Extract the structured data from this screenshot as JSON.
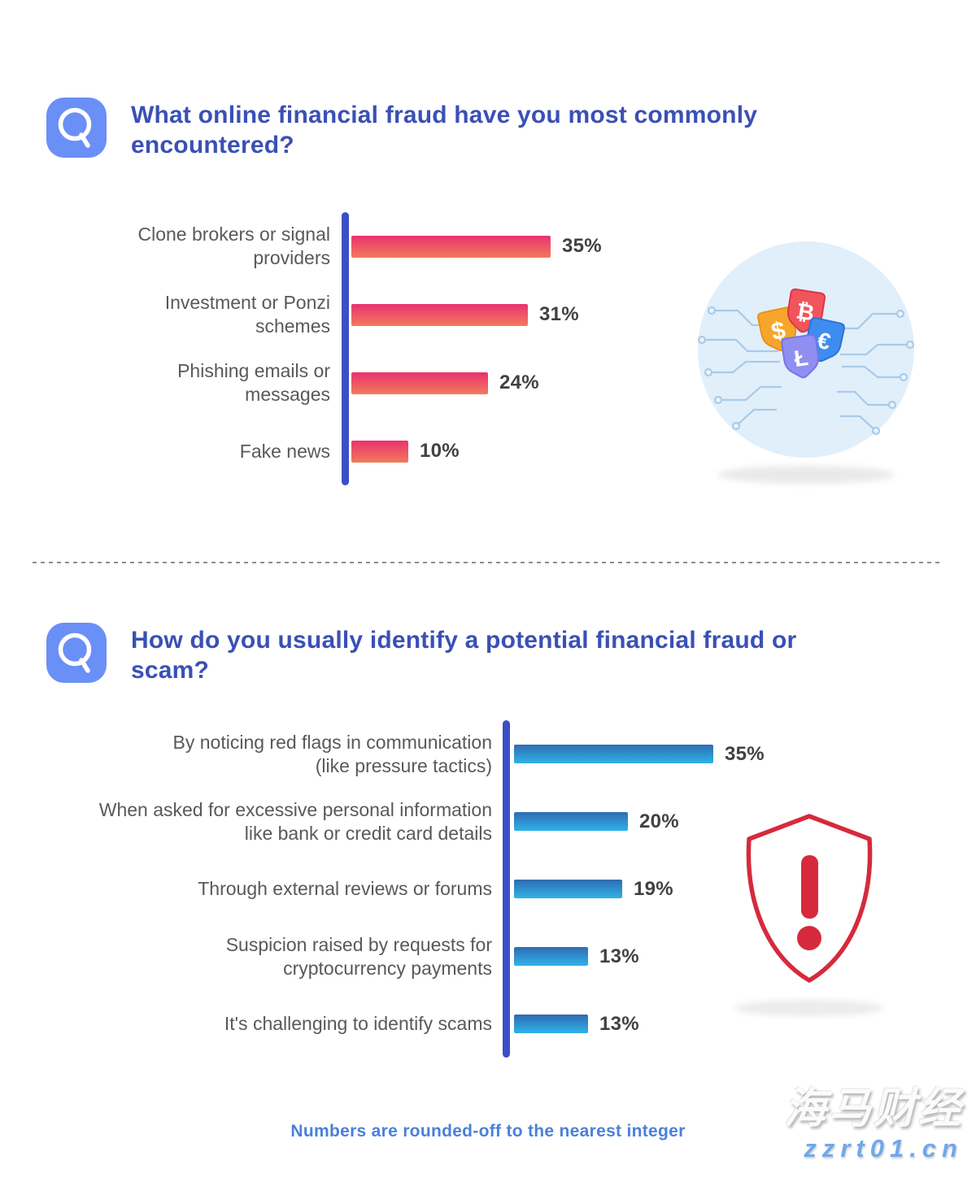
{
  "colors": {
    "q_icon_bg": "#6A8FF6",
    "title_blue": "#3A50B5",
    "axis_indigo": "#3D4EC6",
    "label_gray": "#58595B",
    "value_dark": "#414042",
    "footer_blue": "#4A80D9",
    "pink_bar_top": "#E93270",
    "pink_bar_bottom": "#F27A5B",
    "blue_bar_top": "#2F6BB3",
    "blue_bar_bottom": "#2FB3E8",
    "alert_red": "#D62A3C",
    "illu_circle_bg": "#E1EFFB",
    "illu_trace": "#A9CBE8"
  },
  "questions": [
    {
      "icon": "magnifier-q-icon",
      "title": "What online financial fraud have you most commonly encountered?"
    },
    {
      "icon": "magnifier-q-icon",
      "title": "How do you usually identify a potential financial fraud or scam?"
    }
  ],
  "chart_data": [
    {
      "type": "bar",
      "orientation": "horizontal",
      "title": "What online financial fraud have you most commonly encountered?",
      "unit": "%",
      "xlim": [
        0,
        40
      ],
      "grid": false,
      "legend": false,
      "categories": [
        "Clone brokers or signal providers",
        "Investment or Ponzi schemes",
        "Phishing emails or messages",
        "Fake news"
      ],
      "category_lines": [
        [
          "Clone brokers or signal",
          "providers"
        ],
        [
          "Investment or Ponzi",
          "schemes"
        ],
        [
          "Phishing emails or",
          "messages"
        ],
        [
          "Fake news"
        ]
      ],
      "values": [
        35,
        31,
        24,
        10
      ],
      "value_labels": [
        "35%",
        "31%",
        "24%",
        "10%"
      ],
      "bar_color_top": "#E93270",
      "bar_color_bottom": "#F27A5B",
      "axis_color": "#3D4EC6",
      "label_color": "#58595B",
      "value_color": "#414042"
    },
    {
      "type": "bar",
      "orientation": "horizontal",
      "title": "How do you usually identify a potential financial fraud or scam?",
      "unit": "%",
      "xlim": [
        0,
        40
      ],
      "grid": false,
      "legend": false,
      "categories": [
        "By noticing red flags in communication (like pressure tactics)",
        "When asked for excessive personal information like bank or credit card details",
        "Through external reviews or forums",
        "Suspicion raised by requests for cryptocurrency payments",
        "It's challenging to identify scams"
      ],
      "category_lines": [
        [
          "By noticing red flags in communication",
          "(like pressure tactics)"
        ],
        [
          "When asked for excessive personal information",
          "like bank or credit card details"
        ],
        [
          "Through external reviews or forums"
        ],
        [
          "Suspicion raised by requests for",
          "cryptocurrency payments"
        ],
        [
          "It's challenging to identify scams"
        ]
      ],
      "values": [
        35,
        20,
        19,
        13,
        13
      ],
      "value_labels": [
        "35%",
        "20%",
        "19%",
        "13%",
        "13%"
      ],
      "bar_color_top": "#2F6BB3",
      "bar_color_bottom": "#2FB3E8",
      "axis_color": "#3D4EC6",
      "label_color": "#58595B",
      "value_color": "#414042"
    }
  ],
  "illustrations": [
    {
      "name": "currency-shields",
      "background": "#E1EFFB",
      "trace_color": "#A9CBE8",
      "shields": [
        {
          "symbol": "$",
          "color": "#F7A62C"
        },
        {
          "symbol": "₿",
          "color": "#F2545B"
        },
        {
          "symbol": "€",
          "color": "#3F8CF0"
        },
        {
          "symbol": "Ł",
          "color": "#8F8FF2"
        }
      ]
    },
    {
      "name": "alert-shield",
      "outline_color": "#D62A3C",
      "symbol": "!"
    }
  ],
  "footer": {
    "note": "Numbers are rounded-off to the nearest integer"
  },
  "watermark": {
    "line1": "海马财经",
    "line2": "zzrt01.cn"
  }
}
